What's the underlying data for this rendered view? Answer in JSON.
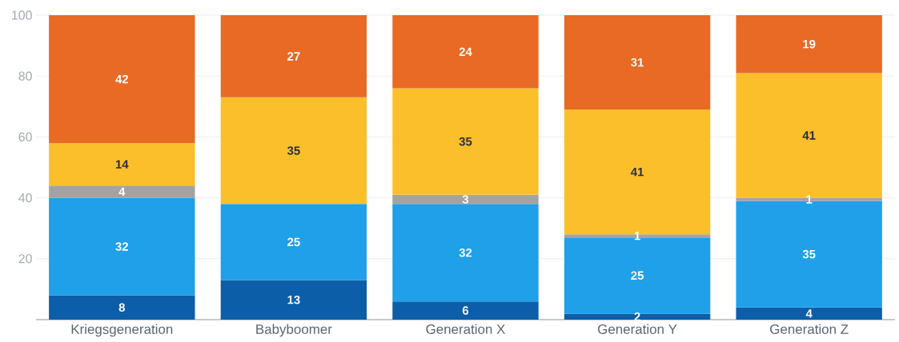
{
  "chart_data": {
    "type": "bar",
    "stacked": true,
    "categories": [
      "Kriegsgeneration",
      "Babyboomer",
      "Generation X",
      "Generation Y",
      "Generation Z"
    ],
    "series": [
      {
        "color": "#0c5ea9",
        "values": [
          8,
          13,
          6,
          2,
          4
        ]
      },
      {
        "color": "#1fa0e8",
        "values": [
          32,
          25,
          32,
          25,
          35
        ]
      },
      {
        "color": "#a3a3a3",
        "values": [
          4,
          null,
          3,
          1,
          1
        ]
      },
      {
        "color": "#fbbf2b",
        "values": [
          14,
          35,
          35,
          41,
          41
        ]
      },
      {
        "color": "#e86a24",
        "values": [
          42,
          27,
          24,
          31,
          19
        ]
      }
    ],
    "ylim": [
      0,
      100
    ],
    "yticks": [
      20,
      40,
      60,
      80,
      100
    ],
    "grid": "y",
    "data_labels": true
  }
}
